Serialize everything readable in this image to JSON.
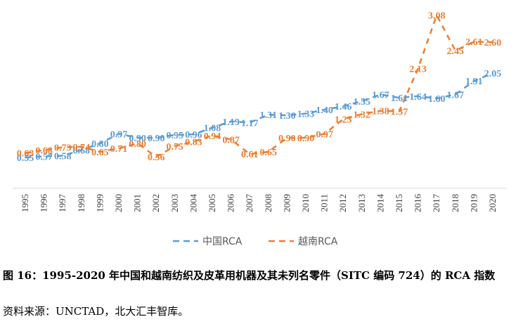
{
  "chart_data": {
    "type": "line",
    "categories": [
      "1995",
      "1996",
      "1997",
      "1998",
      "1999",
      "2000",
      "2001",
      "2002",
      "2003",
      "2004",
      "2005",
      "2006",
      "2007",
      "2008",
      "2009",
      "2010",
      "2011",
      "2012",
      "2013",
      "2014",
      "2015",
      "2016",
      "2017",
      "2018",
      "2019",
      "2020"
    ],
    "series": [
      {
        "name": "中国RCA",
        "color": "#5B9BD5",
        "values": [
          0.55,
          0.57,
          0.58,
          0.68,
          0.8,
          0.97,
          0.9,
          0.9,
          0.95,
          0.96,
          1.08,
          1.19,
          1.17,
          1.31,
          1.3,
          1.33,
          1.4,
          1.46,
          1.55,
          1.67,
          1.61,
          1.64,
          1.6,
          1.67,
          1.91,
          2.05
        ],
        "labels": [
          "0.55",
          "0.57",
          "0.58",
          "0.68",
          "0.80",
          "0.97",
          "0.90",
          "0.90",
          "0.95",
          "0.96",
          "1.08",
          "1.19",
          "1.17",
          "1.31",
          "1.30",
          "1.33",
          "1.40",
          "1.46",
          "1.55",
          "1.67",
          "1.61",
          "1.64",
          "1.60",
          "1.67",
          "1.91",
          "2.05"
        ]
      },
      {
        "name": "越南RCA",
        "color": "#ED7D31",
        "values": [
          0.63,
          0.68,
          0.73,
          0.74,
          0.65,
          0.71,
          0.8,
          0.56,
          0.75,
          0.83,
          0.94,
          0.87,
          0.61,
          0.65,
          0.9,
          0.9,
          0.97,
          1.23,
          1.32,
          1.38,
          1.37,
          2.13,
          3.08,
          2.45,
          2.61,
          2.6
        ],
        "labels": [
          "0.63",
          "0.68",
          "0.73",
          "0.74",
          "0.65",
          "0.71",
          "0.80",
          "0.56",
          "0.75",
          "0.83",
          "0.94",
          "0.87",
          "0.61",
          "0.65",
          "0.90",
          "0.90",
          "0.97",
          "1.23",
          "1.32",
          "1.38",
          "1.37",
          "2.13",
          "3.08",
          "2.45",
          "2.61",
          "2.60"
        ]
      }
    ],
    "ylim": [
      0,
      3.35
    ],
    "grid": false,
    "legend_position": "bottom"
  },
  "caption": "图 16：1995-2020 年中国和越南纺织及皮革用机器及其未列名零件（SITC 编码 724）的 RCA 指数",
  "source": "资料来源：UNCTAD，北大汇丰智库。"
}
